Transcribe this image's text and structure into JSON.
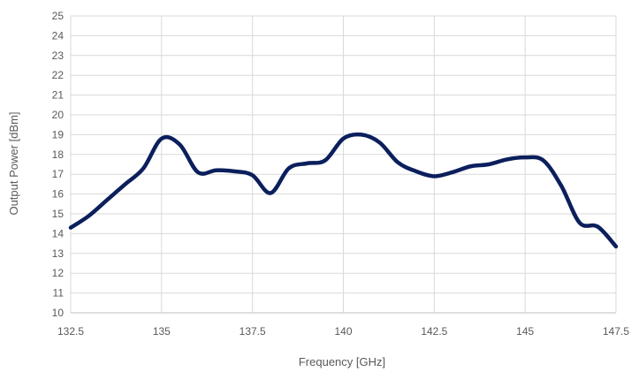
{
  "chart_data": {
    "type": "line",
    "title": "",
    "xlabel": "Frequency [GHz]",
    "ylabel": "Output Power [dBm]",
    "xlim": [
      132.5,
      147.5
    ],
    "ylim": [
      10,
      25
    ],
    "xticks": [
      132.5,
      135,
      137.5,
      140,
      142.5,
      145,
      147.5
    ],
    "xtick_labels": [
      "132.5",
      "135",
      "137.5",
      "140",
      "142.5",
      "145",
      "147.5"
    ],
    "yticks": [
      10,
      11,
      12,
      13,
      14,
      15,
      16,
      17,
      18,
      19,
      20,
      21,
      22,
      23,
      24,
      25
    ],
    "ytick_labels": [
      "10",
      "11",
      "12",
      "13",
      "14",
      "15",
      "16",
      "17",
      "18",
      "19",
      "20",
      "21",
      "22",
      "23",
      "24",
      "25"
    ],
    "grid": true,
    "series": [
      {
        "color": "#0b1f5c",
        "x": [
          132.5,
          133.0,
          133.5,
          134.0,
          134.5,
          135.0,
          135.5,
          136.0,
          136.5,
          137.0,
          137.5,
          138.0,
          138.5,
          139.0,
          139.5,
          140.0,
          140.5,
          141.0,
          141.5,
          142.0,
          142.5,
          143.0,
          143.5,
          144.0,
          144.5,
          145.0,
          145.5,
          146.0,
          146.5,
          147.0,
          147.5
        ],
        "values": [
          14.3,
          14.9,
          15.7,
          16.5,
          17.3,
          18.8,
          18.5,
          17.1,
          17.2,
          17.15,
          16.95,
          16.05,
          17.3,
          17.55,
          17.7,
          18.8,
          19.0,
          18.6,
          17.6,
          17.15,
          16.9,
          17.1,
          17.4,
          17.5,
          17.75,
          17.85,
          17.7,
          16.4,
          14.55,
          14.35,
          13.35
        ]
      }
    ]
  }
}
